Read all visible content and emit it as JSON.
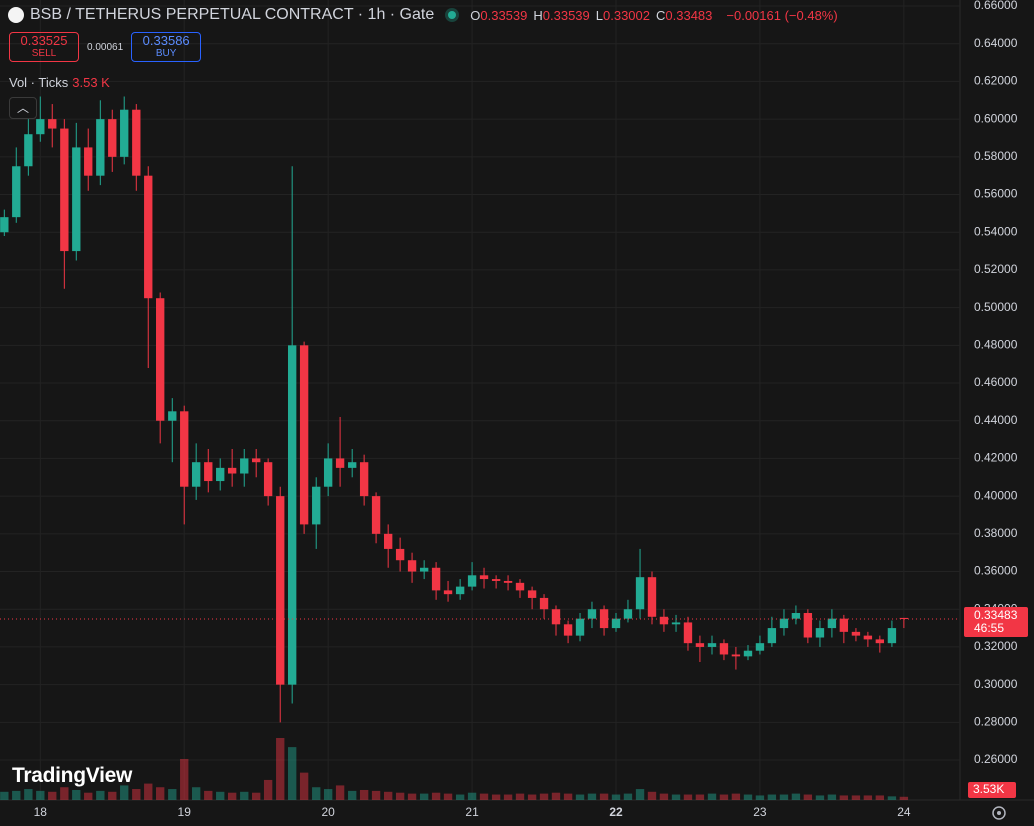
{
  "chart_data": {
    "type": "candlestick",
    "title": "BSB / TETHERUS PERPETUAL CONTRACT · 1h · Gate",
    "legend": [
      {
        "label": "O",
        "value": "0.33539"
      },
      {
        "label": "H",
        "value": "0.33539"
      },
      {
        "label": "L",
        "value": "0.33002"
      },
      {
        "label": "C",
        "value": "0.33483"
      }
    ],
    "change": "−0.00161 (−0.48%)",
    "sell": {
      "price": "0.33525",
      "label": "SELL"
    },
    "spread": "0.00061",
    "buy": {
      "price": "0.33586",
      "label": "BUY"
    },
    "volume_title": "Vol · Ticks",
    "volume_value": "3.53 K",
    "volume_tag": "3.53K",
    "last_price_label": "0.33483",
    "countdown": "46:55",
    "watermark": "TradingView",
    "up_color": "#22ab94",
    "down_color": "#f23645",
    "grid": true,
    "x": [
      17.75,
      17.833,
      17.917,
      18,
      18.083,
      18.167,
      18.25,
      18.333,
      18.417,
      18.5,
      18.583,
      18.667,
      18.75,
      18.833,
      18.917,
      19,
      19.083,
      19.167,
      19.25,
      19.333,
      19.417,
      19.5,
      19.583,
      19.667,
      19.75,
      19.833,
      19.917,
      20,
      20.083,
      20.167,
      20.25,
      20.333,
      20.417,
      20.5,
      20.583,
      20.667,
      20.75,
      20.833,
      20.917,
      21,
      21.083,
      21.167,
      21.25,
      21.333,
      21.417,
      21.5,
      21.583,
      21.667,
      21.75,
      21.833,
      21.917,
      22,
      22.083,
      22.167,
      22.25,
      22.333,
      22.417,
      22.5,
      22.583,
      22.667,
      22.75,
      22.833,
      22.917,
      23,
      23.083,
      23.167,
      23.25,
      23.333,
      23.417,
      23.5,
      23.583,
      23.667,
      23.75,
      23.833,
      23.917,
      24
    ],
    "open": [
      0.54,
      0.548,
      0.575,
      0.592,
      0.6,
      0.595,
      0.53,
      0.585,
      0.57,
      0.6,
      0.58,
      0.605,
      0.57,
      0.505,
      0.44,
      0.445,
      0.405,
      0.418,
      0.408,
      0.415,
      0.412,
      0.42,
      0.418,
      0.4,
      0.3,
      0.48,
      0.385,
      0.405,
      0.42,
      0.415,
      0.418,
      0.4,
      0.38,
      0.372,
      0.366,
      0.36,
      0.362,
      0.35,
      0.348,
      0.352,
      0.358,
      0.356,
      0.355,
      0.354,
      0.35,
      0.346,
      0.34,
      0.332,
      0.326,
      0.335,
      0.34,
      0.33,
      0.335,
      0.34,
      0.357,
      0.336,
      0.332,
      0.333,
      0.322,
      0.32,
      0.322,
      0.316,
      0.315,
      0.318,
      0.322,
      0.33,
      0.335,
      0.338,
      0.325,
      0.33,
      0.335,
      0.328,
      0.326,
      0.324,
      0.322,
      0.33539
    ],
    "high": [
      0.552,
      0.585,
      0.6,
      0.612,
      0.608,
      0.6,
      0.598,
      0.595,
      0.61,
      0.605,
      0.612,
      0.608,
      0.575,
      0.508,
      0.452,
      0.448,
      0.428,
      0.425,
      0.42,
      0.425,
      0.425,
      0.425,
      0.42,
      0.405,
      0.575,
      0.482,
      0.41,
      0.428,
      0.442,
      0.425,
      0.422,
      0.402,
      0.385,
      0.378,
      0.37,
      0.366,
      0.365,
      0.355,
      0.356,
      0.365,
      0.362,
      0.358,
      0.358,
      0.356,
      0.352,
      0.348,
      0.342,
      0.334,
      0.338,
      0.344,
      0.342,
      0.338,
      0.345,
      0.372,
      0.36,
      0.34,
      0.337,
      0.336,
      0.326,
      0.326,
      0.324,
      0.32,
      0.321,
      0.326,
      0.336,
      0.34,
      0.342,
      0.34,
      0.334,
      0.34,
      0.337,
      0.33,
      0.328,
      0.326,
      0.334,
      0.33539
    ],
    "low": [
      0.538,
      0.545,
      0.57,
      0.588,
      0.585,
      0.51,
      0.525,
      0.562,
      0.565,
      0.572,
      0.576,
      0.562,
      0.468,
      0.428,
      0.418,
      0.385,
      0.398,
      0.402,
      0.403,
      0.405,
      0.405,
      0.41,
      0.395,
      0.28,
      0.29,
      0.38,
      0.372,
      0.4,
      0.405,
      0.41,
      0.395,
      0.375,
      0.362,
      0.36,
      0.354,
      0.356,
      0.345,
      0.344,
      0.345,
      0.35,
      0.351,
      0.351,
      0.35,
      0.346,
      0.34,
      0.335,
      0.326,
      0.322,
      0.323,
      0.33,
      0.326,
      0.328,
      0.333,
      0.335,
      0.332,
      0.328,
      0.328,
      0.318,
      0.312,
      0.316,
      0.313,
      0.308,
      0.313,
      0.316,
      0.32,
      0.326,
      0.332,
      0.322,
      0.32,
      0.325,
      0.322,
      0.323,
      0.32,
      0.317,
      0.32,
      0.33002
    ],
    "close": [
      0.548,
      0.575,
      0.592,
      0.6,
      0.595,
      0.53,
      0.585,
      0.57,
      0.6,
      0.58,
      0.605,
      0.57,
      0.505,
      0.44,
      0.445,
      0.405,
      0.418,
      0.408,
      0.415,
      0.412,
      0.42,
      0.418,
      0.4,
      0.3,
      0.48,
      0.385,
      0.405,
      0.42,
      0.415,
      0.418,
      0.4,
      0.38,
      0.372,
      0.366,
      0.36,
      0.362,
      0.35,
      0.348,
      0.352,
      0.358,
      0.356,
      0.355,
      0.354,
      0.35,
      0.346,
      0.34,
      0.332,
      0.326,
      0.335,
      0.34,
      0.33,
      0.335,
      0.34,
      0.357,
      0.336,
      0.332,
      0.333,
      0.322,
      0.32,
      0.322,
      0.316,
      0.315,
      0.318,
      0.322,
      0.33,
      0.335,
      0.338,
      0.325,
      0.33,
      0.335,
      0.328,
      0.326,
      0.324,
      0.322,
      0.33,
      0.33483
    ],
    "volume": [
      9,
      10,
      12,
      10,
      9,
      14,
      11,
      8,
      10,
      9,
      16,
      12,
      18,
      14,
      12,
      45,
      14,
      10,
      9,
      8,
      9,
      8,
      22,
      68,
      58,
      30,
      14,
      12,
      16,
      10,
      11,
      10,
      9,
      8,
      7,
      7,
      8,
      7,
      6,
      8,
      7,
      6,
      6,
      7,
      6,
      7,
      8,
      7,
      6,
      7,
      7,
      6,
      7,
      12,
      9,
      7,
      6,
      6,
      6,
      7,
      6,
      7,
      6,
      5,
      6,
      6,
      7,
      6,
      5,
      6,
      5,
      5,
      5,
      5,
      4,
      3.53
    ],
    "xlim": [
      17.72,
      24.39
    ],
    "ylim": [
      0.2388,
      0.6632
    ],
    "xticks": [
      18,
      19,
      20,
      21,
      22,
      23,
      24
    ],
    "xtick_bold": [
      22
    ],
    "yticks": [
      {
        "value": 0.26,
        "label": "0.26000"
      },
      {
        "value": 0.28,
        "label": "0.28000"
      },
      {
        "value": 0.3,
        "label": "0.30000"
      },
      {
        "value": 0.32,
        "label": "0.32000"
      },
      {
        "value": 0.34,
        "label": "0.34000"
      },
      {
        "value": 0.36,
        "label": "0.36000"
      },
      {
        "value": 0.38,
        "label": "0.38000"
      },
      {
        "value": 0.4,
        "label": "0.40000"
      },
      {
        "value": 0.42,
        "label": "0.42000"
      },
      {
        "value": 0.44,
        "label": "0.44000"
      },
      {
        "value": 0.46,
        "label": "0.46000"
      },
      {
        "value": 0.48,
        "label": "0.48000"
      },
      {
        "value": 0.5,
        "label": "0.50000"
      },
      {
        "value": 0.52,
        "label": "0.52000"
      },
      {
        "value": 0.54,
        "label": "0.54000"
      },
      {
        "value": 0.56,
        "label": "0.56000"
      },
      {
        "value": 0.58,
        "label": "0.58000"
      },
      {
        "value": 0.6,
        "label": "0.60000"
      },
      {
        "value": 0.62,
        "label": "0.62000"
      },
      {
        "value": 0.64,
        "label": "0.64000"
      },
      {
        "value": 0.66,
        "label": "0.66000"
      }
    ]
  }
}
